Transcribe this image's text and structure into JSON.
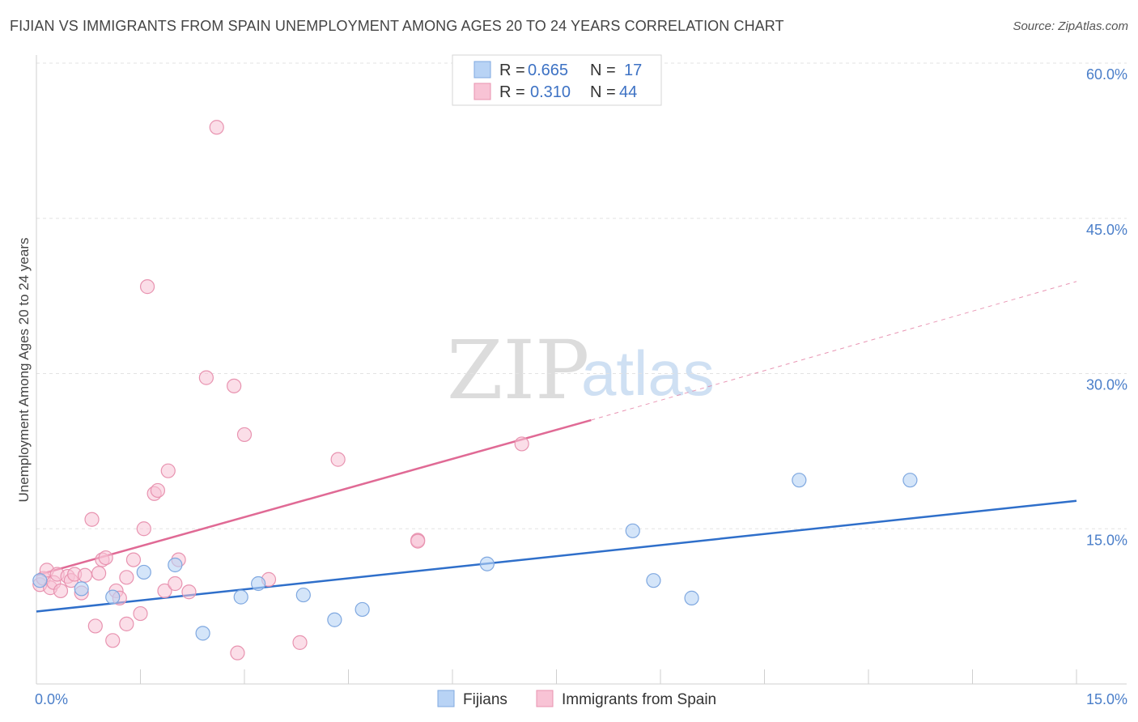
{
  "header": {
    "title": "FIJIAN VS IMMIGRANTS FROM SPAIN UNEMPLOYMENT AMONG AGES 20 TO 24 YEARS CORRELATION CHART",
    "source": "Source: ZipAtlas.com"
  },
  "watermark": {
    "zip": "ZIP",
    "atlas": "atlas"
  },
  "colors": {
    "fijians_fill": "#b8d3f5",
    "fijians_stroke": "#7fa8e0",
    "fijians_line": "#2f6fca",
    "spain_fill": "#f8c3d5",
    "spain_stroke": "#e893b0",
    "spain_line": "#e06a95",
    "tick_text": "#4a7ec9",
    "grid": "#e3e3e3"
  },
  "legend": {
    "rows": [
      {
        "r_label": "R = ",
        "r_value": "0.665",
        "n_label": "N = ",
        "n_value": "17"
      },
      {
        "r_label": "R = ",
        "r_value": "0.310",
        "n_label": "N = ",
        "n_value": "44"
      }
    ]
  },
  "chart_data": {
    "type": "scatter",
    "title": "FIJIAN VS IMMIGRANTS FROM SPAIN UNEMPLOYMENT AMONG AGES 20 TO 24 YEARS CORRELATION CHART",
    "xlabel": "",
    "ylabel": "Unemployment Among Ages 20 to 24 years",
    "xlim": [
      0,
      15
    ],
    "ylim": [
      0,
      60
    ],
    "x_tick_labels": [
      "0.0%",
      "15.0%"
    ],
    "y_tick_labels": [
      "15.0%",
      "30.0%",
      "45.0%",
      "60.0%"
    ],
    "y_tick_values": [
      15,
      30,
      45,
      60
    ],
    "grid": true,
    "legend_position": "bottom",
    "series": [
      {
        "name": "Fijians",
        "r": 0.665,
        "n": 17,
        "points": [
          [
            0.05,
            10.0
          ],
          [
            0.65,
            9.2
          ],
          [
            1.1,
            8.4
          ],
          [
            1.55,
            10.8
          ],
          [
            2.0,
            11.5
          ],
          [
            2.4,
            4.9
          ],
          [
            2.95,
            8.4
          ],
          [
            3.2,
            9.7
          ],
          [
            3.85,
            8.6
          ],
          [
            4.3,
            6.2
          ],
          [
            4.7,
            7.2
          ],
          [
            6.5,
            11.6
          ],
          [
            8.6,
            14.8
          ],
          [
            8.9,
            10.0
          ],
          [
            9.45,
            8.3
          ],
          [
            11.0,
            19.7
          ],
          [
            12.6,
            19.7
          ]
        ],
        "trend": {
          "x": [
            0,
            15
          ],
          "y": [
            7.0,
            17.7
          ]
        }
      },
      {
        "name": "Immigrants from Spain",
        "r": 0.31,
        "n": 44,
        "points": [
          [
            0.05,
            9.6
          ],
          [
            0.1,
            10.2
          ],
          [
            0.15,
            11.0
          ],
          [
            0.2,
            9.3
          ],
          [
            0.25,
            9.8
          ],
          [
            0.3,
            10.6
          ],
          [
            0.35,
            9.0
          ],
          [
            0.45,
            10.4
          ],
          [
            0.5,
            10.0
          ],
          [
            0.55,
            10.6
          ],
          [
            0.65,
            8.8
          ],
          [
            0.7,
            10.5
          ],
          [
            0.8,
            15.9
          ],
          [
            0.85,
            5.6
          ],
          [
            0.9,
            10.7
          ],
          [
            0.95,
            12.0
          ],
          [
            1.0,
            12.2
          ],
          [
            1.1,
            4.2
          ],
          [
            1.15,
            9.0
          ],
          [
            1.2,
            8.3
          ],
          [
            1.3,
            10.3
          ],
          [
            1.3,
            5.8
          ],
          [
            1.4,
            12.0
          ],
          [
            1.5,
            6.8
          ],
          [
            1.55,
            15.0
          ],
          [
            1.6,
            38.4
          ],
          [
            1.7,
            18.4
          ],
          [
            1.75,
            18.7
          ],
          [
            1.85,
            9.0
          ],
          [
            1.9,
            20.6
          ],
          [
            2.0,
            9.7
          ],
          [
            2.05,
            12.0
          ],
          [
            2.2,
            8.9
          ],
          [
            2.45,
            29.6
          ],
          [
            2.6,
            53.8
          ],
          [
            2.85,
            28.8
          ],
          [
            2.9,
            3.0
          ],
          [
            3.0,
            24.1
          ],
          [
            3.35,
            10.1
          ],
          [
            3.8,
            4.0
          ],
          [
            4.35,
            21.7
          ],
          [
            5.5,
            13.9
          ],
          [
            5.5,
            13.8
          ],
          [
            7.0,
            23.2
          ]
        ],
        "trend": {
          "x": [
            0,
            8.0
          ],
          "y": [
            10.5,
            25.5
          ]
        },
        "trend_extension": {
          "x": [
            8.0,
            15.0
          ],
          "y": [
            25.5,
            38.9
          ]
        }
      }
    ]
  }
}
